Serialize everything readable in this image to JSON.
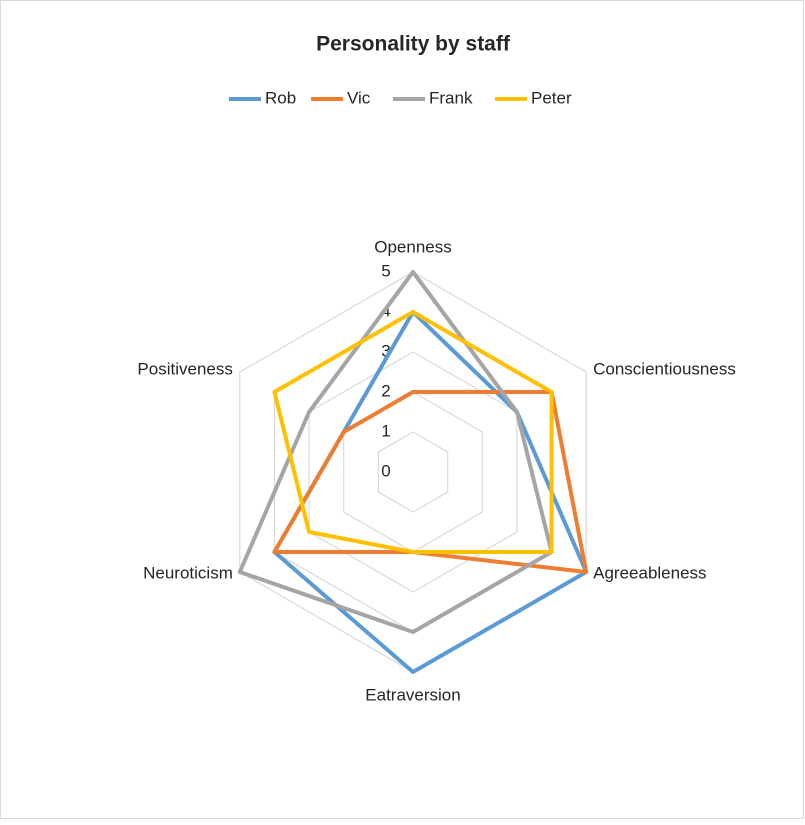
{
  "chart_data": {
    "type": "radar",
    "title": "Personality by staff",
    "categories": [
      "Openness",
      "Conscientiousness",
      "Agreeableness",
      "Eatraversion",
      "Neuroticism",
      "Positiveness"
    ],
    "series": [
      {
        "name": "Rob",
        "color": "#5b9bd5",
        "values": [
          4,
          3,
          5,
          5,
          4,
          2
        ]
      },
      {
        "name": "Vic",
        "color": "#ed7d31",
        "values": [
          2,
          4,
          5,
          2,
          4,
          2
        ]
      },
      {
        "name": "Frank",
        "color": "#a5a5a5",
        "values": [
          5,
          3,
          4,
          4,
          5,
          3
        ]
      },
      {
        "name": "Peter",
        "color": "#ffc000",
        "values": [
          4,
          4,
          4,
          2,
          3,
          4
        ]
      }
    ],
    "ylim": [
      0,
      5
    ],
    "yticks": [
      0,
      1,
      2,
      3,
      4,
      5
    ],
    "grid": true,
    "legend": "top"
  }
}
